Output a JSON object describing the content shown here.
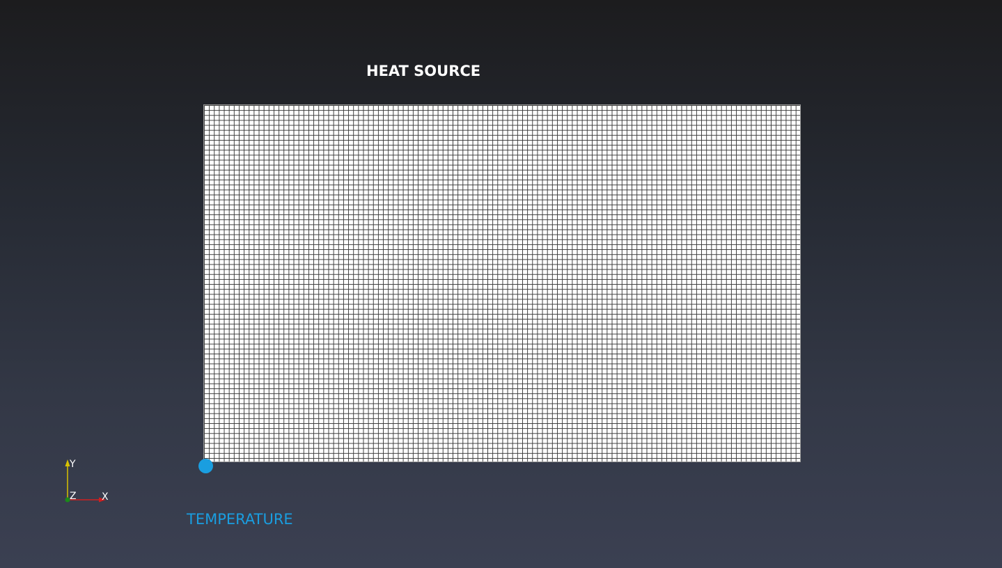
{
  "scene": {
    "heat_source_label": "HEAT SOURCE",
    "temperature_label": "TEMPERATURE"
  },
  "axes": {
    "y_label": "Y",
    "z_label": "Z",
    "x_label": "X"
  },
  "colors": {
    "temperature_accent": "#1a9ee0",
    "mesh_fill": "#ffffff",
    "mesh_lines": "#3a3a3a",
    "axis_y": "#d8c200",
    "axis_x": "#d02020",
    "axis_z": "#1a8a1a"
  }
}
